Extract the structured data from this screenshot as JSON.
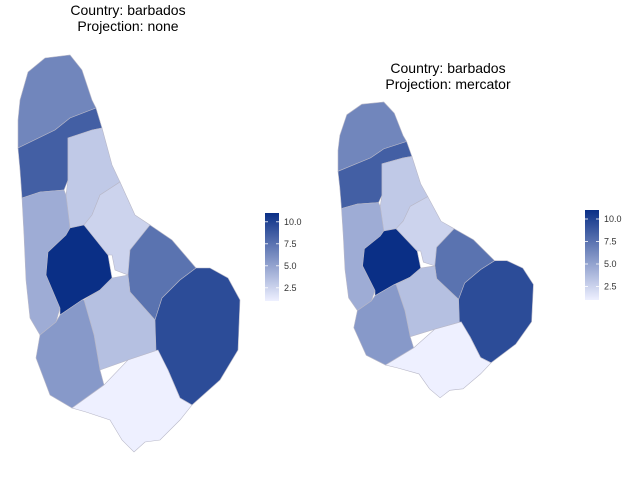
{
  "panels": [
    {
      "title_line1": "Country: barbados",
      "title_line2": "Projection: none"
    },
    {
      "title_line1": "Country: barbados",
      "title_line2": "Projection: mercator"
    }
  ],
  "legend": {
    "ticks": [
      "10.0",
      "7.5",
      "5.0",
      "2.5"
    ],
    "tick_values": [
      10.0,
      7.5,
      5.0,
      2.5
    ],
    "range": [
      1,
      11
    ],
    "color_low": "#eef0ff",
    "color_high": "#0a2f86"
  },
  "parishes": [
    {
      "value": 6.5
    },
    {
      "value": 8.5
    },
    {
      "value": 3.0
    },
    {
      "value": 4.5
    },
    {
      "value": 11.0
    },
    {
      "value": 2.5
    },
    {
      "value": 7.5
    },
    {
      "value": 3.5
    },
    {
      "value": 5.5
    },
    {
      "value": 9.5
    },
    {
      "value": 1.0
    }
  ],
  "colors": {
    "border": "#b8b8c8",
    "background": "#ffffff"
  }
}
